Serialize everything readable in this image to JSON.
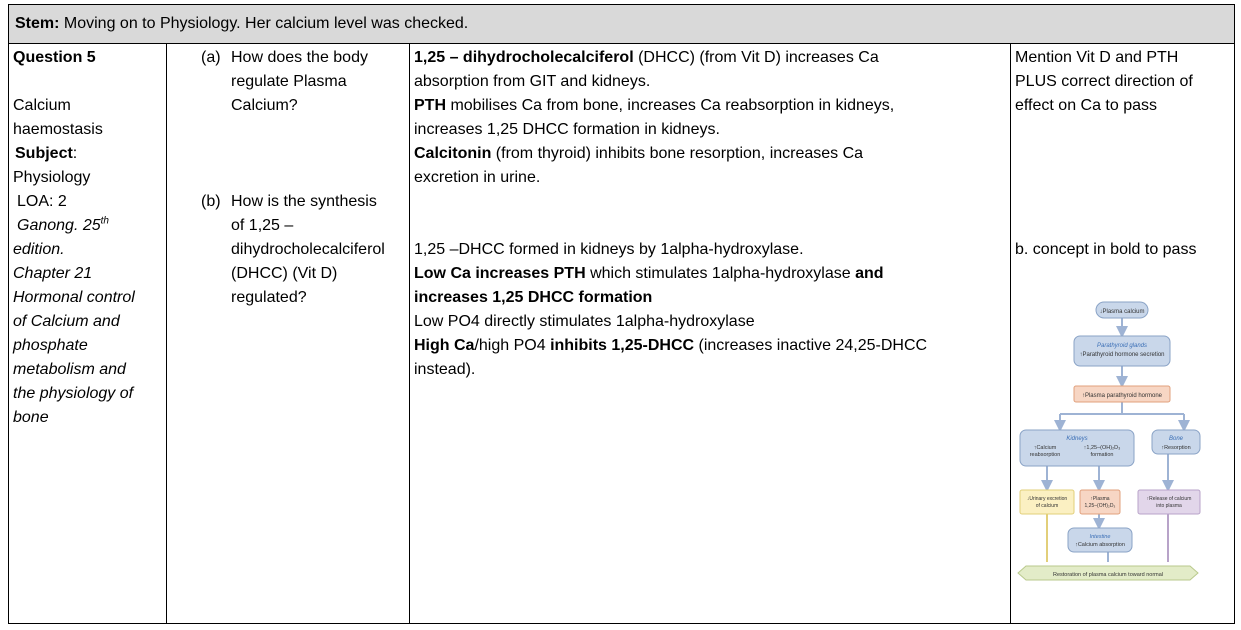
{
  "stem": {
    "label": "Stem:",
    "text": " Moving on to Physiology.  Her calcium level was checked."
  },
  "col1": {
    "question": "Question 5",
    "topic_line1": "Calcium",
    "topic_line2": "haemostasis",
    "subject_label": "Subject",
    "subject_colon": ":",
    "subject": "Physiology",
    "loa": "LOA: 2",
    "ref_book": "Ganong. 25",
    "ref_sup": "th",
    "ref_lines": [
      "edition.",
      "Chapter 21",
      "Hormonal control",
      "of Calcium and",
      "phosphate",
      "metabolism and",
      "the physiology of",
      "bone"
    ]
  },
  "col2": {
    "qa_tag": "(a)",
    "qa_lines": [
      "How does the body",
      "regulate Plasma",
      "Calcium?"
    ],
    "qb_tag": "(b)",
    "qb_lines": [
      "How is the synthesis",
      "of 1,25 –",
      "dihydrocholecalciferol",
      "(DHCC) (Vit D)",
      "regulated?"
    ]
  },
  "col3": {
    "a1_bold": "1,25 – dihydrocholecalciferol",
    "a1_rest": " (DHCC) (from Vit D) increases Ca",
    "a1_line2": "absorption from GIT and kidneys.",
    "a2_bold": "PTH",
    "a2_rest": " mobilises Ca from bone, increases Ca reabsorption in kidneys,",
    "a2_line2": "increases 1,25 DHCC formation in kidneys.",
    "a3_bold": "Calcitonin",
    "a3_rest": " (from thyroid) inhibits bone resorption, increases Ca",
    "a3_line2": "excretion in urine.",
    "b1": "1,25 –DHCC formed in kidneys by 1alpha-hydroxylase.",
    "b2_bold1": "Low Ca increases PTH",
    "b2_mid": " which stimulates 1alpha-hydroxylase ",
    "b2_bold2": "and",
    "b2_line2": "increases 1,25 DHCC formation",
    "b3": "Low PO4 directly stimulates 1alpha-hydroxylase",
    "b4_bold1": "High Ca",
    "b4_mid": "/high PO4 ",
    "b4_bold2": "inhibits 1,25-DHCC",
    "b4_rest": " (increases inactive 24,25-DHCC",
    "b4_line2": "instead)."
  },
  "col4": {
    "a_lines": [
      "Mention Vit D and PTH",
      "PLUS correct direction of",
      "effect on Ca to pass"
    ],
    "b_text": "b. concept in bold to pass"
  },
  "flowchart": {
    "n1": "↓Plasma calcium",
    "n2_title": "Parathyroid glands",
    "n2_text": "↑Parathyroid hormone secretion",
    "n3": "↑Plasma parathyroid hormone",
    "kidneys_title": "Kidneys",
    "kid_a1": "↑Calcium",
    "kid_a2": "reabsorption",
    "kid_b1": "↑1,25–(OH)₂D₃",
    "kid_b2": "formation",
    "bone_title": "Bone",
    "bone_text": "↑Resorption",
    "urine1": "↓Urinary excretion",
    "urine2": "of calcium",
    "plasma1": "↑Plasma",
    "plasma2": "1,25–(OH)₂D₃",
    "release1": "↑Release of calcium",
    "release2": "into plasma",
    "intestine_title": "Intestine",
    "intestine_text": "↑Calcium absorption",
    "restore": "Restoration of plasma calcium toward normal",
    "colors": {
      "blue": "#c9d7ea",
      "blue_border": "#8aa3c6",
      "orange": "#f7d6c4",
      "orange_border": "#e0a07c",
      "yellow": "#fbf0c2",
      "yellow_border": "#e2cf7a",
      "purple": "#e2d6ea",
      "purple_border": "#b8a3c9",
      "green": "#e3ecc8",
      "green_border": "#b9c98c",
      "arrow": "#9eb3d4"
    }
  }
}
